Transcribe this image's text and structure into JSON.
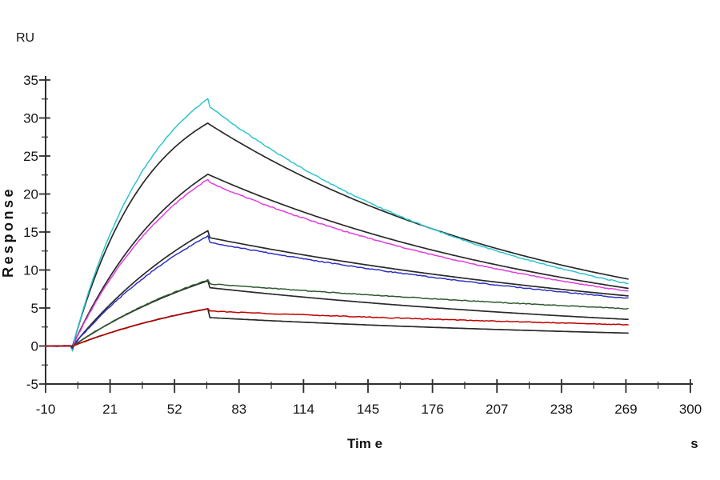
{
  "chart_data": {
    "type": "line",
    "title": "",
    "xlabel": "Tim e",
    "x_unit": "s",
    "ylabel": "Response",
    "y_unit": "RU",
    "xlim": [
      -10,
      300
    ],
    "ylim": [
      -5,
      35
    ],
    "grid": false,
    "legend": false,
    "x_major_ticks": [
      -10,
      21,
      52,
      83,
      114,
      145,
      176,
      207,
      238,
      269,
      300
    ],
    "x_minor_ticks": [
      5.5,
      36.5,
      67.5,
      98.5,
      129.5,
      160.5,
      191.5,
      222.5,
      253.5,
      284.5
    ],
    "y_major_ticks": [
      -5,
      0,
      5,
      10,
      15,
      20,
      25,
      30,
      35
    ],
    "y_minor_ticks": [
      -2.5,
      2.5,
      7.5,
      12.5,
      17.5,
      22.5,
      27.5,
      32.5
    ],
    "baseline_start_s": -10,
    "injection_start_s": 3,
    "injection_end_s": 68,
    "curve_end_s": 270,
    "description": "SPR sensorgram: five colored measured curves with overlaid dark fitted curves; association until ~68 s, then dissociation to ~270 s",
    "series": [
      {
        "name": "fit-cyan",
        "role": "fit",
        "color": "#2a2a2a",
        "peak_ru": 29.6,
        "end_ru": 8.8,
        "noise": 0,
        "model": {
          "A": 35.0,
          "kobs": 0.028,
          "t0": 3,
          "tp": 68,
          "r0": 29.3,
          "kd": 0.00595,
          "dip": 0
        }
      },
      {
        "name": "fit-magenta",
        "role": "fit",
        "color": "#2a2a2a",
        "peak_ru": 22.6,
        "end_ru": 7.6,
        "noise": 0,
        "model": {
          "A": 32.3,
          "kobs": 0.0185,
          "t0": 3,
          "tp": 68,
          "r0": 22.6,
          "kd": 0.0054,
          "dip": 0
        }
      },
      {
        "name": "fit-blue",
        "role": "fit",
        "color": "#2a2a2a",
        "peak_ru": 15.2,
        "end_ru": 6.6,
        "noise": 0,
        "model": {
          "A": 27.7,
          "kobs": 0.0122,
          "t0": 3,
          "tp": 68,
          "r0": 14.3,
          "kd": 0.00383,
          "dip": 0
        }
      },
      {
        "name": "fit-green",
        "role": "fit",
        "color": "#2a2a2a",
        "peak_ru": 8.6,
        "end_ru": 3.5,
        "noise": 0,
        "model": {
          "A": 17.0,
          "kobs": 0.0108,
          "t0": 3,
          "tp": 68,
          "r0": 7.7,
          "kd": 0.0039,
          "dip": 0
        }
      },
      {
        "name": "fit-red",
        "role": "fit",
        "color": "#2a2a2a",
        "peak_ru": 4.9,
        "end_ru": 1.7,
        "noise": 0,
        "model": {
          "A": 9.3,
          "kobs": 0.0115,
          "t0": 3,
          "tp": 68,
          "r0": 3.75,
          "kd": 0.00392,
          "dip": 0
        }
      },
      {
        "name": "cyan-data",
        "role": "data",
        "color": "#2cc5ce",
        "peak_ru": 32.3,
        "end_ru": 8.2,
        "noise": 0.13,
        "model": {
          "A": 40.5,
          "kobs": 0.025,
          "t0": 3,
          "tp": 68,
          "r0": 31.7,
          "kd": 0.00669,
          "dip": 0.6
        }
      },
      {
        "name": "magenta-data",
        "role": "data",
        "color": "#e23dde",
        "peak_ru": 21.9,
        "end_ru": 7.2,
        "noise": 0.12,
        "model": {
          "A": 32.0,
          "kobs": 0.0178,
          "t0": 3,
          "tp": 68,
          "r0": 21.6,
          "kd": 0.00544,
          "dip": 0.3
        }
      },
      {
        "name": "blue-data",
        "role": "data",
        "color": "#3030c0",
        "peak_ru": 14.5,
        "end_ru": 6.3,
        "noise": 0.12,
        "model": {
          "A": 27.0,
          "kobs": 0.0118,
          "t0": 3,
          "tp": 68,
          "r0": 13.7,
          "kd": 0.00385,
          "dip": 0.3
        }
      },
      {
        "name": "green-data",
        "role": "data",
        "color": "#2e5a2e",
        "peak_ru": 8.7,
        "end_ru": 4.9,
        "noise": 0.1,
        "model": {
          "A": 17.2,
          "kobs": 0.0108,
          "t0": 3,
          "tp": 68,
          "r0": 8.2,
          "kd": 0.00255,
          "dip": 0.2
        }
      },
      {
        "name": "red-data",
        "role": "data",
        "color": "#c00000",
        "peak_ru": 4.9,
        "end_ru": 2.8,
        "noise": 0.1,
        "model": {
          "A": 9.3,
          "kobs": 0.0115,
          "t0": 3,
          "tp": 68,
          "r0": 4.6,
          "kd": 0.00246,
          "dip": 0.15
        }
      }
    ]
  }
}
